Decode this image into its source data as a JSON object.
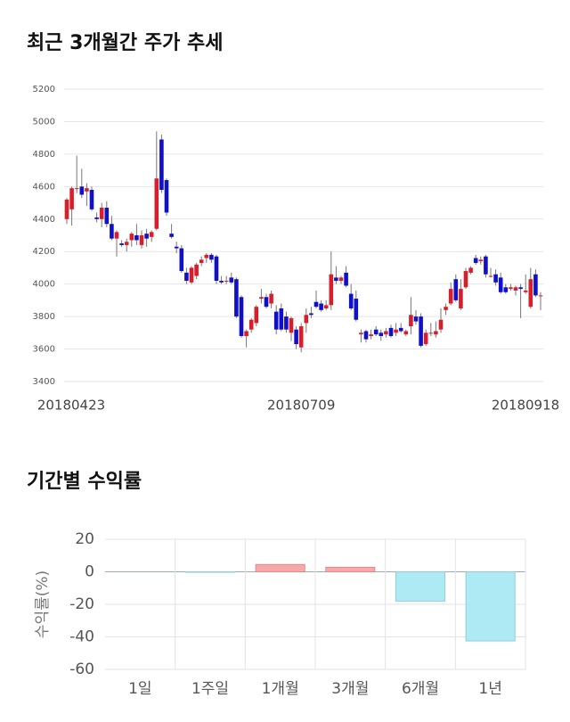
{
  "chart_data": [
    {
      "type": "candlestick",
      "title": "최근 3개월간 주가 추세",
      "categories": [
        "20180423",
        null,
        null,
        null,
        null,
        null,
        null,
        null,
        null,
        null,
        null,
        null,
        null,
        null,
        null,
        null,
        null,
        null,
        null,
        null,
        null,
        null,
        null,
        null,
        null,
        null,
        null,
        null,
        null,
        null,
        null,
        null,
        null,
        null,
        null,
        null,
        null,
        null,
        null,
        null,
        null,
        null,
        null,
        null,
        null,
        null,
        null,
        "20180709",
        null,
        null,
        null,
        null,
        null,
        null,
        null,
        null,
        null,
        null,
        null,
        null,
        null,
        null,
        null,
        null,
        null,
        null,
        null,
        null,
        null,
        null,
        null,
        null,
        null,
        null,
        null,
        null,
        null,
        null,
        null,
        null,
        null,
        null,
        null,
        null,
        null,
        null,
        null,
        null,
        null,
        null,
        null,
        null,
        null,
        null,
        null,
        "20180918"
      ],
      "open": [
        4400,
        4460,
        4590,
        4600,
        4570,
        4580,
        4410,
        4400,
        4470,
        4370,
        4280,
        4250,
        4240,
        4270,
        4300,
        4240,
        4310,
        4290,
        4340,
        4890,
        4640,
        4310,
        4230,
        4220,
        4070,
        4010,
        4050,
        4130,
        4160,
        4180,
        4170,
        4020,
        4020,
        4040,
        4030,
        3920,
        3680,
        3720,
        3760,
        3910,
        3920,
        3880,
        3830,
        3850,
        3800,
        3700,
        3720,
        3610,
        3760,
        3820,
        3890,
        3880,
        3850,
        3870,
        4040,
        4020,
        4070,
        3940,
        3910,
        3690,
        3710,
        3680,
        3720,
        3700,
        3690,
        3730,
        3700,
        3730,
        3690,
        3740,
        3800,
        3800,
        3630,
        3700,
        3690,
        3720,
        3840,
        3880,
        4030,
        3850,
        3980,
        4070,
        4160,
        4140,
        4170,
        4050,
        4060,
        4040,
        3980,
        3970,
        3960,
        3980,
        3950,
        3860,
        4060,
        3930
      ],
      "high": [
        4530,
        4600,
        4790,
        4710,
        4620,
        4600,
        4440,
        4500,
        4510,
        4420,
        4330,
        4270,
        4280,
        4320,
        4370,
        4330,
        4340,
        4330,
        4940,
        4920,
        4650,
        4370,
        4260,
        4240,
        4100,
        4110,
        4130,
        4170,
        4190,
        4190,
        4180,
        4050,
        4050,
        4070,
        4040,
        3930,
        3720,
        3790,
        3870,
        3970,
        3940,
        3960,
        3870,
        3880,
        3830,
        3800,
        3740,
        3760,
        3850,
        3860,
        3960,
        3900,
        3900,
        4200,
        4110,
        4050,
        4110,
        4000,
        3960,
        3720,
        3720,
        3720,
        3740,
        3720,
        3730,
        3750,
        3760,
        3760,
        3720,
        3920,
        3840,
        3820,
        3720,
        3760,
        3770,
        3850,
        3880,
        4010,
        4060,
        4030,
        4100,
        4110,
        4180,
        4170,
        4180,
        4100,
        4090,
        4070,
        4000,
        4000,
        3990,
        4000,
        4060,
        4100,
        4090,
        3950
      ],
      "low": [
        4370,
        4360,
        4560,
        4530,
        4480,
        4450,
        4380,
        4350,
        4350,
        4270,
        4170,
        4230,
        4200,
        4230,
        4240,
        4220,
        4230,
        4260,
        4330,
        4560,
        4420,
        4280,
        4190,
        4070,
        4000,
        4000,
        4030,
        4110,
        4130,
        4130,
        4000,
        4000,
        4000,
        4000,
        3790,
        3670,
        3610,
        3700,
        3740,
        3880,
        3850,
        3850,
        3690,
        3710,
        3700,
        3650,
        3600,
        3580,
        3700,
        3790,
        3850,
        3830,
        3840,
        3840,
        4000,
        4000,
        3980,
        3840,
        3770,
        3640,
        3640,
        3660,
        3680,
        3650,
        3670,
        3670,
        3680,
        3700,
        3680,
        3690,
        3750,
        3610,
        3620,
        3680,
        3670,
        3700,
        3810,
        3870,
        3890,
        3840,
        3970,
        4060,
        4120,
        4120,
        4040,
        4040,
        3990,
        3940,
        3940,
        3960,
        3930,
        3790,
        3940,
        3850,
        3920,
        3840
      ],
      "close": [
        4520,
        4590,
        4590,
        4550,
        4590,
        4460,
        4400,
        4470,
        4370,
        4280,
        4320,
        4240,
        4260,
        4310,
        4270,
        4300,
        4280,
        4320,
        4650,
        4580,
        4440,
        4290,
        4220,
        4080,
        4020,
        4100,
        4120,
        4150,
        4180,
        4150,
        4020,
        4010,
        4020,
        4010,
        3800,
        3680,
        3710,
        3780,
        3860,
        3920,
        3860,
        3940,
        3720,
        3720,
        3720,
        3790,
        3630,
        3740,
        3810,
        3810,
        3860,
        3840,
        3870,
        4060,
        4020,
        4040,
        3990,
        3850,
        3780,
        3700,
        3660,
        3690,
        3690,
        3680,
        3710,
        3680,
        3720,
        3710,
        3710,
        3810,
        3770,
        3620,
        3700,
        3700,
        3710,
        3780,
        3860,
        3970,
        3900,
        3970,
        4080,
        4100,
        4130,
        4150,
        4060,
        4050,
        4010,
        3950,
        3950,
        3980,
        3980,
        3970,
        3960,
        4030,
        3930,
        3930
      ],
      "up_color": "#d81e2a",
      "down_color": "#1010c8",
      "ylim": [
        3400,
        5200
      ],
      "yticks": [
        3400,
        3600,
        3800,
        4000,
        4200,
        4400,
        4600,
        4800,
        5000,
        5200
      ],
      "grid": true
    },
    {
      "type": "bar",
      "title": "기간별 수익률",
      "y_label": "수익률(%)",
      "categories": [
        "1일",
        "1주일",
        "1개월",
        "3개월",
        "6개월",
        "1년"
      ],
      "values": [
        0,
        -0.3,
        4.5,
        2.8,
        -18,
        -42.5
      ],
      "positive_color": "#f7a8a8",
      "negative_color": "#aeeaf3",
      "ylim": [
        -60,
        20
      ],
      "yticks": [
        -60,
        -40,
        -20,
        0,
        20
      ],
      "grid": true
    }
  ]
}
